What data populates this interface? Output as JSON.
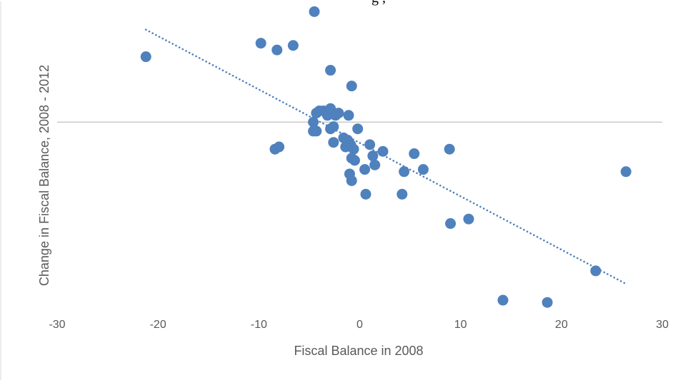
{
  "top_text": "g                              ,",
  "chart_data": {
    "type": "scatter",
    "xlabel": "Fiscal Balance in 2008",
    "ylabel": "Change in Fiscal Balance, 2008 - 2012",
    "xlim": [
      -30,
      30
    ],
    "xticks": [
      -30,
      -20,
      -10,
      0,
      10,
      20,
      30
    ],
    "x_tick_labels": [
      "-30",
      "-20",
      "-10",
      "0",
      "10",
      "20",
      "30"
    ],
    "ylim": [
      -0.85,
      0.51
    ],
    "grid": false,
    "legend": "none",
    "marker_color": "#4f81bd",
    "trendline": {
      "style": "dotted",
      "color": "#4f81bd",
      "x_start": -21.2,
      "y_start": 0.41,
      "x_end": 26.5,
      "y_end": -0.72
    },
    "points": [
      {
        "x": -21.2,
        "y": 0.29
      },
      {
        "x": -9.8,
        "y": 0.35
      },
      {
        "x": -8.2,
        "y": 0.32
      },
      {
        "x": -6.6,
        "y": 0.34
      },
      {
        "x": -4.5,
        "y": 0.49
      },
      {
        "x": -2.9,
        "y": 0.23
      },
      {
        "x": -0.8,
        "y": 0.16
      },
      {
        "x": -4.6,
        "y": 0.0
      },
      {
        "x": -4.3,
        "y": 0.04
      },
      {
        "x": -4.0,
        "y": 0.05
      },
      {
        "x": -3.6,
        "y": 0.05
      },
      {
        "x": -3.2,
        "y": 0.03
      },
      {
        "x": -2.9,
        "y": 0.06
      },
      {
        "x": -2.6,
        "y": 0.04
      },
      {
        "x": -2.4,
        "y": 0.03
      },
      {
        "x": -2.1,
        "y": 0.04
      },
      {
        "x": -1.1,
        "y": 0.03
      },
      {
        "x": -4.6,
        "y": -0.04
      },
      {
        "x": -4.3,
        "y": -0.04
      },
      {
        "x": -2.9,
        "y": -0.03
      },
      {
        "x": -2.6,
        "y": -0.02
      },
      {
        "x": -0.2,
        "y": -0.03
      },
      {
        "x": -8.4,
        "y": -0.12
      },
      {
        "x": -8.0,
        "y": -0.11
      },
      {
        "x": -2.6,
        "y": -0.09
      },
      {
        "x": -1.6,
        "y": -0.07
      },
      {
        "x": -1.2,
        "y": -0.08
      },
      {
        "x": -1.4,
        "y": -0.11
      },
      {
        "x": -0.9,
        "y": -0.1
      },
      {
        "x": -0.6,
        "y": -0.12
      },
      {
        "x": -0.8,
        "y": -0.16
      },
      {
        "x": -0.5,
        "y": -0.17
      },
      {
        "x": 1.0,
        "y": -0.1
      },
      {
        "x": 1.3,
        "y": -0.15
      },
      {
        "x": 1.5,
        "y": -0.19
      },
      {
        "x": 2.3,
        "y": -0.13
      },
      {
        "x": 0.5,
        "y": -0.21
      },
      {
        "x": -1.0,
        "y": -0.23
      },
      {
        "x": -0.8,
        "y": -0.26
      },
      {
        "x": 0.6,
        "y": -0.32
      },
      {
        "x": 4.2,
        "y": -0.32
      },
      {
        "x": 4.4,
        "y": -0.22
      },
      {
        "x": 5.4,
        "y": -0.14
      },
      {
        "x": 6.3,
        "y": -0.21
      },
      {
        "x": 8.9,
        "y": -0.12
      },
      {
        "x": 9.0,
        "y": -0.45
      },
      {
        "x": 10.8,
        "y": -0.43
      },
      {
        "x": 14.2,
        "y": -0.79
      },
      {
        "x": 18.6,
        "y": -0.8
      },
      {
        "x": 23.4,
        "y": -0.66
      },
      {
        "x": 26.4,
        "y": -0.22
      }
    ]
  }
}
